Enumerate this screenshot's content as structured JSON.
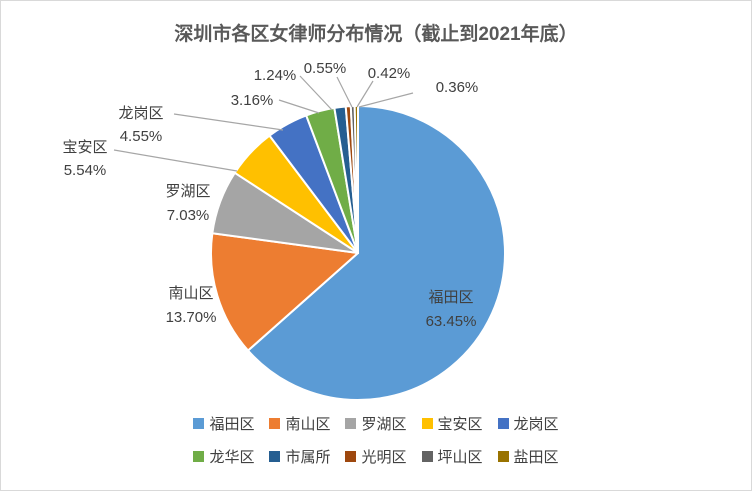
{
  "chart_data": {
    "type": "pie",
    "title": "深圳市各区女律师分布情况（截止到2021年底）",
    "unit": "percent",
    "direction": "clockwise",
    "start_angle_deg": 0,
    "legend_position": "bottom",
    "legend_rows": 2,
    "series": [
      {
        "name": "福田区",
        "value": 63.45,
        "percent_label": "63.45%",
        "color": "#5B9BD5",
        "label_style": "inside-name-pct"
      },
      {
        "name": "南山区",
        "value": 13.7,
        "percent_label": "13.70%",
        "color": "#ED7D31",
        "label_style": "outside-name-pct"
      },
      {
        "name": "罗湖区",
        "value": 7.03,
        "percent_label": "7.03%",
        "color": "#A5A5A5",
        "label_style": "outside-name-pct"
      },
      {
        "name": "宝安区",
        "value": 5.54,
        "percent_label": "5.54%",
        "color": "#FFC000",
        "label_style": "outside-name-pct"
      },
      {
        "name": "龙岗区",
        "value": 4.55,
        "percent_label": "4.55%",
        "color": "#4472C4",
        "label_style": "outside-name-pct"
      },
      {
        "name": "龙华区",
        "value": 3.16,
        "percent_label": "3.16%",
        "color": "#70AD47",
        "label_style": "outside-pct"
      },
      {
        "name": "市属所",
        "value": 1.24,
        "percent_label": "1.24%",
        "color": "#255E91",
        "label_style": "outside-pct"
      },
      {
        "name": "光明区",
        "value": 0.55,
        "percent_label": "0.55%",
        "color": "#9E480E",
        "label_style": "outside-pct"
      },
      {
        "name": "坪山区",
        "value": 0.42,
        "percent_label": "0.42%",
        "color": "#636363",
        "label_style": "outside-pct"
      },
      {
        "name": "盐田区",
        "value": 0.36,
        "percent_label": "0.36%",
        "color": "#997300",
        "label_style": "outside-pct"
      }
    ]
  },
  "styles": {
    "background": "#FFFFFF",
    "frame_border": "#D9D9D9",
    "title_color": "#595959",
    "label_color": "#404040",
    "legend_text_color": "#404040",
    "slice_border_color": "#FFFFFF",
    "leader_line_color": "#A6A6A6"
  }
}
